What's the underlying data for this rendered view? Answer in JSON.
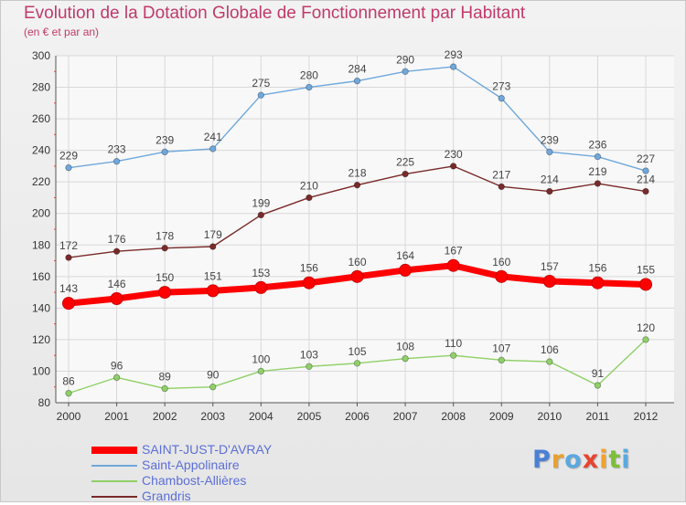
{
  "title": "Evolution de la Dotation Globale de Fonctionnement par Habitant",
  "subtitle": "(en € et par an)",
  "logo": {
    "text": "Proxiti",
    "colors": [
      "#4a7fd4",
      "#e8a030",
      "#5aa8e0",
      "#e8442e",
      "#f2a12f",
      "#7cbf3a",
      "#5aa8e0"
    ]
  },
  "chart_data": {
    "type": "line",
    "x": [
      "2000",
      "2001",
      "2002",
      "2003",
      "2004",
      "2005",
      "2006",
      "2007",
      "2008",
      "2009",
      "2010",
      "2011",
      "2012"
    ],
    "ylim": [
      80,
      300
    ],
    "yticks": [
      "80",
      "100",
      "120",
      "140",
      "160",
      "180",
      "200",
      "220",
      "240",
      "260",
      "280",
      "300"
    ],
    "grid": true,
    "legend_position": "bottom-left",
    "series": [
      {
        "name": "SAINT-JUST-D'AVRAY",
        "color": "#ff0000",
        "emphasis": true,
        "values": [
          143,
          146,
          150,
          151,
          153,
          156,
          160,
          164,
          167,
          160,
          157,
          156,
          155
        ]
      },
      {
        "name": "Saint-Appolinaire",
        "color": "#6fa8dc",
        "values": [
          229,
          233,
          239,
          241,
          275,
          280,
          284,
          290,
          293,
          273,
          239,
          236,
          227
        ]
      },
      {
        "name": "Chambost-Allières",
        "color": "#8fd067",
        "values": [
          86,
          96,
          89,
          90,
          100,
          103,
          105,
          108,
          110,
          107,
          106,
          91,
          120
        ]
      },
      {
        "name": "Grandris",
        "color": "#7a2a2a",
        "values": [
          172,
          176,
          178,
          179,
          199,
          210,
          218,
          225,
          230,
          217,
          214,
          219,
          214
        ]
      }
    ]
  }
}
